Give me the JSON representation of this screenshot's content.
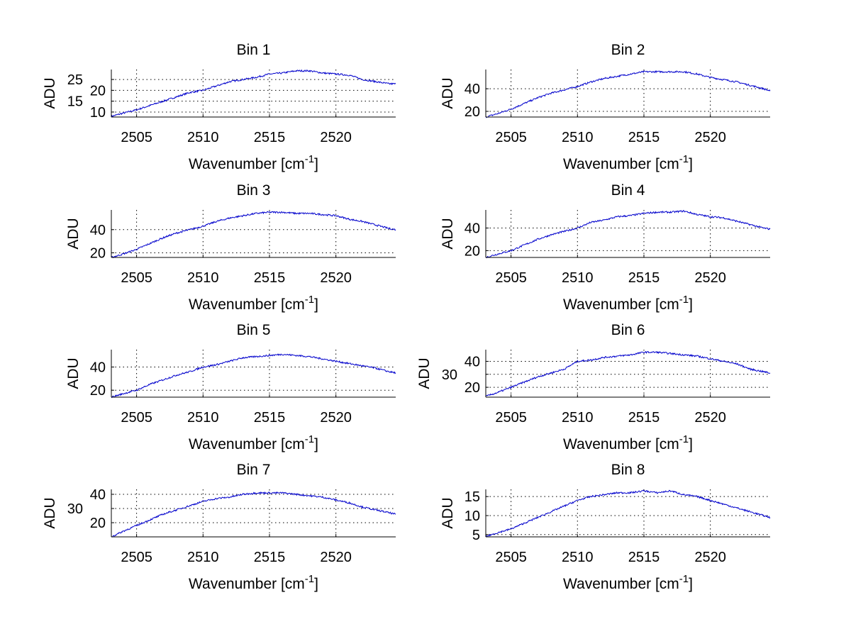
{
  "chart_data": {
    "type": "line",
    "layout": "4x2 subplots",
    "line_color": "#0000cc",
    "grid": true,
    "xlabel": "Wavenumber [cm",
    "xlabel_superscript": "-1",
    "xlabel_suffix": "]",
    "ylabel": "ADU",
    "xlim": [
      2503.1,
      2524.5
    ],
    "xticks": [
      2505,
      2510,
      2515,
      2520
    ],
    "x": [
      2503.1,
      2504,
      2505,
      2506,
      2507,
      2508,
      2509,
      2510,
      2511,
      2512,
      2513,
      2514,
      2515,
      2516,
      2517,
      2518,
      2519,
      2520,
      2521,
      2522,
      2523,
      2524,
      2524.5
    ],
    "panels": [
      {
        "title": "Bin 1",
        "ylim": [
          7.7,
          29.6
        ],
        "yticks": [
          10,
          15,
          20,
          25
        ],
        "values": [
          8,
          9.5,
          11,
          13,
          15,
          17,
          19,
          20,
          22,
          24,
          25,
          26,
          27.5,
          28,
          29,
          29,
          28,
          27.5,
          27,
          25,
          24,
          23,
          23
        ]
      },
      {
        "title": "Bin 2",
        "ylim": [
          15,
          57
        ],
        "yticks": [
          20,
          40
        ],
        "values": [
          15,
          18,
          22,
          27,
          32,
          36,
          39,
          42,
          46,
          49,
          51,
          53,
          55,
          55,
          55,
          55,
          53,
          50,
          48,
          46,
          43,
          40,
          38
        ]
      },
      {
        "title": "Bin 3",
        "ylim": [
          16,
          57
        ],
        "yticks": [
          20,
          40
        ],
        "values": [
          16,
          19,
          23,
          28,
          33,
          37,
          40,
          43,
          47,
          50,
          52,
          54,
          55,
          55,
          54,
          54,
          53,
          52,
          49,
          47,
          44,
          41,
          40
        ]
      },
      {
        "title": "Bin 4",
        "ylim": [
          14,
          56
        ],
        "yticks": [
          20,
          40
        ],
        "values": [
          14,
          17,
          20,
          25,
          30,
          34,
          37,
          40,
          45,
          47,
          50,
          51,
          53,
          54,
          54,
          55,
          52,
          50,
          49,
          46,
          43,
          40,
          39
        ]
      },
      {
        "title": "Bin 5",
        "ylim": [
          14,
          55
        ],
        "yticks": [
          20,
          40
        ],
        "values": [
          14,
          17,
          20,
          25,
          29,
          33,
          36,
          40,
          42,
          45,
          48,
          49,
          50,
          51,
          50,
          49,
          47,
          45,
          43,
          41,
          39,
          36,
          35
        ]
      },
      {
        "title": "Bin 6",
        "ylim": [
          12.4,
          49
        ],
        "yticks": [
          20,
          30,
          40
        ],
        "values": [
          13,
          16,
          20,
          24,
          28,
          31,
          34,
          40,
          41,
          43,
          44,
          45,
          47,
          47,
          46,
          45,
          44,
          42,
          40,
          38,
          34,
          32,
          31
        ]
      },
      {
        "title": "Bin 7",
        "ylim": [
          10,
          43.5
        ],
        "yticks": [
          20,
          30,
          40
        ],
        "values": [
          10,
          14,
          18,
          22,
          26,
          29,
          32,
          35,
          37,
          38,
          40,
          41,
          41,
          41,
          40,
          39,
          38,
          36,
          34,
          31,
          29,
          27,
          26
        ]
      },
      {
        "title": "Bin 8",
        "ylim": [
          4.4,
          16.9
        ],
        "yticks": [
          5,
          10,
          15
        ],
        "values": [
          4.5,
          5.5,
          6.5,
          8,
          9.5,
          11,
          12.5,
          14,
          15,
          15.5,
          16,
          16,
          16.5,
          16,
          16.5,
          15.5,
          15,
          14,
          13,
          12,
          11,
          10,
          9.5
        ]
      }
    ]
  }
}
